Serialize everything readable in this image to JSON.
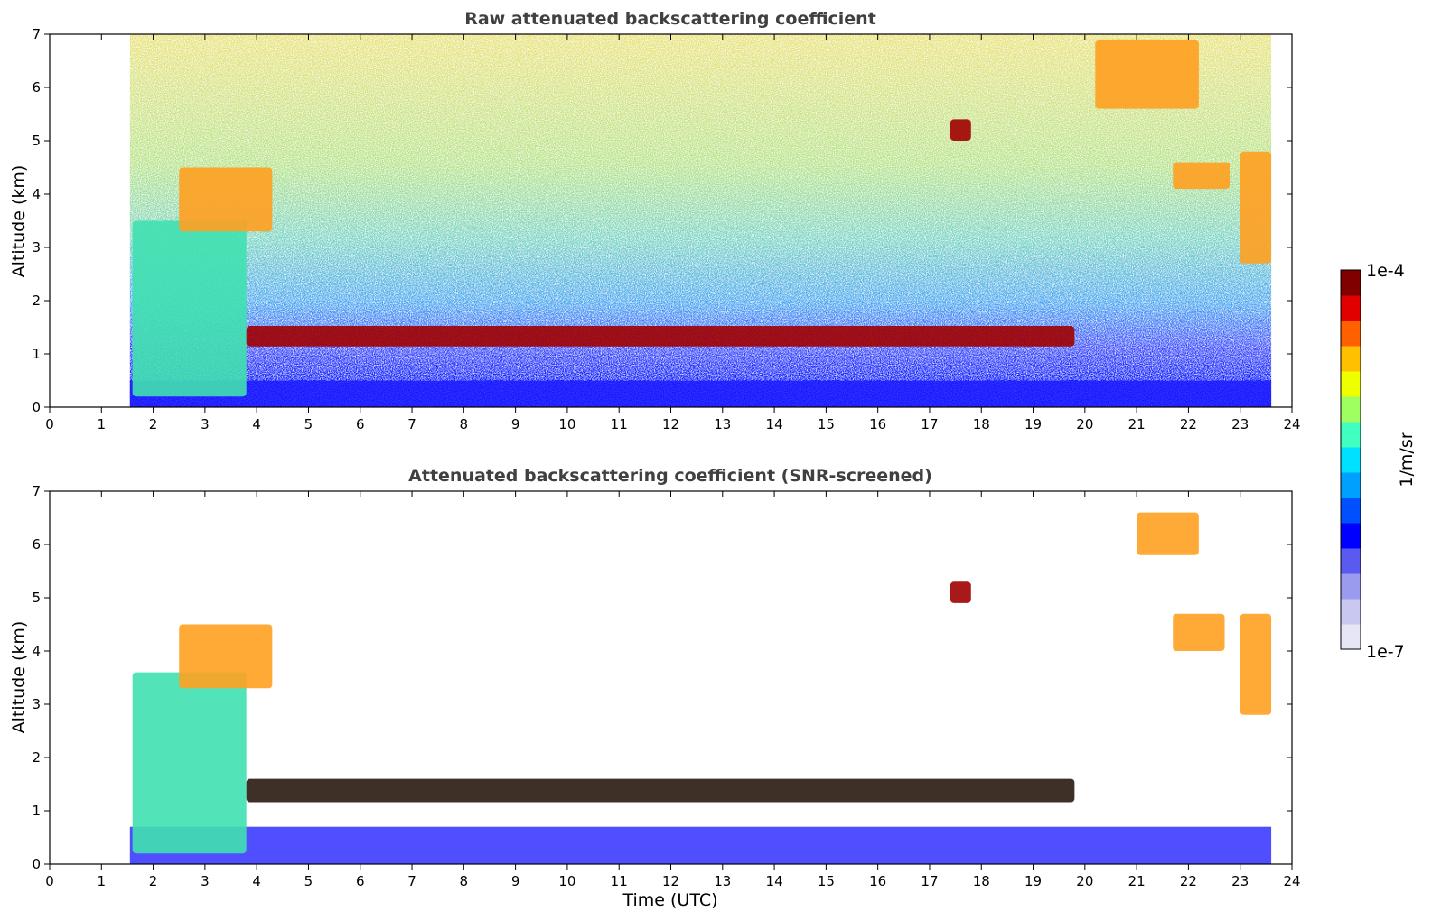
{
  "chart_data": [
    {
      "type": "heatmap",
      "title": "Raw attenuated backscattering coefficient",
      "xlabel": "",
      "ylabel": "Altitude (km)",
      "xlim": [
        0,
        24
      ],
      "ylim": [
        0,
        7
      ],
      "xticks": [
        "0",
        "1",
        "2",
        "3",
        "4",
        "5",
        "6",
        "7",
        "8",
        "9",
        "10",
        "11",
        "12",
        "13",
        "14",
        "15",
        "16",
        "17",
        "18",
        "19",
        "20",
        "21",
        "22",
        "23",
        "24"
      ],
      "yticks": [
        "0",
        "1",
        "2",
        "3",
        "4",
        "5",
        "6",
        "7"
      ],
      "data_extent_hours": [
        1.55,
        23.6
      ],
      "features": [
        {
          "name": "near-surface aerosol layer",
          "x": [
            1.55,
            23.6
          ],
          "altitude_km": [
            0,
            0.5
          ],
          "level": "low"
        },
        {
          "name": "descending aerosol plume",
          "x": [
            1.6,
            3.8
          ],
          "altitude_km": [
            0.2,
            3.5
          ],
          "level": "medium-high"
        },
        {
          "name": "elevated aerosol layer",
          "x": [
            2.5,
            4.3
          ],
          "altitude_km": [
            3.3,
            4.5
          ],
          "level": "high"
        },
        {
          "name": "boundary layer top clouds",
          "x": [
            3.8,
            19.8
          ],
          "altitude_km": [
            1.0,
            1.7
          ],
          "level": "very high"
        },
        {
          "name": "mid-level cloud",
          "x": [
            17.4,
            17.8
          ],
          "altitude_km": [
            5.0,
            5.4
          ],
          "level": "very high"
        },
        {
          "name": "upper cloud",
          "x": [
            20.2,
            22.2
          ],
          "altitude_km": [
            5.6,
            6.9
          ],
          "level": "high"
        },
        {
          "name": "cloud",
          "x": [
            21.7,
            22.8
          ],
          "altitude_km": [
            4.1,
            4.6
          ],
          "level": "high"
        },
        {
          "name": "cloud",
          "x": [
            23.0,
            23.6
          ],
          "altitude_km": [
            2.7,
            4.8
          ],
          "level": "high"
        }
      ]
    },
    {
      "type": "heatmap",
      "title": "Attenuated backscattering coefficient (SNR-screened)",
      "xlabel": "Time (UTC)",
      "ylabel": "Altitude (km)",
      "xlim": [
        0,
        24
      ],
      "ylim": [
        0,
        7
      ],
      "xticks": [
        "0",
        "1",
        "2",
        "3",
        "4",
        "5",
        "6",
        "7",
        "8",
        "9",
        "10",
        "11",
        "12",
        "13",
        "14",
        "15",
        "16",
        "17",
        "18",
        "19",
        "20",
        "21",
        "22",
        "23",
        "24"
      ],
      "yticks": [
        "0",
        "1",
        "2",
        "3",
        "4",
        "5",
        "6",
        "7"
      ],
      "data_extent_hours": [
        1.55,
        23.6
      ],
      "features": [
        {
          "name": "near-surface aerosol layer",
          "x": [
            1.55,
            23.6
          ],
          "altitude_km": [
            0,
            0.7
          ],
          "level": "low"
        },
        {
          "name": "descending aerosol plume",
          "x": [
            1.6,
            3.8
          ],
          "altitude_km": [
            0.2,
            3.6
          ],
          "level": "medium-high"
        },
        {
          "name": "elevated aerosol layer",
          "x": [
            2.5,
            4.3
          ],
          "altitude_km": [
            3.3,
            4.5
          ],
          "level": "high"
        },
        {
          "name": "boundary layer top clouds",
          "x": [
            3.8,
            19.8
          ],
          "altitude_km": [
            1.0,
            1.8
          ],
          "level": "very high"
        },
        {
          "name": "mid-level cloud",
          "x": [
            17.4,
            17.8
          ],
          "altitude_km": [
            4.9,
            5.3
          ],
          "level": "very high"
        },
        {
          "name": "upper cloud",
          "x": [
            21.0,
            22.2
          ],
          "altitude_km": [
            5.8,
            6.6
          ],
          "level": "high"
        },
        {
          "name": "cloud",
          "x": [
            21.7,
            22.7
          ],
          "altitude_km": [
            4.0,
            4.7
          ],
          "level": "high"
        },
        {
          "name": "cloud",
          "x": [
            23.0,
            23.6
          ],
          "altitude_km": [
            2.8,
            4.7
          ],
          "level": "high"
        }
      ]
    }
  ],
  "colorbar": {
    "label": "1/m/sr",
    "max_label": "1e-4",
    "min_label": "1e-7",
    "colors": [
      "#e6e6f6",
      "#c8c8f0",
      "#9a9aee",
      "#5a5af0",
      "#0000ff",
      "#0050ff",
      "#00a0ff",
      "#00e0ff",
      "#40ffc0",
      "#a0ff60",
      "#f0ff00",
      "#ffc000",
      "#ff6000",
      "#e00000",
      "#800000"
    ]
  }
}
